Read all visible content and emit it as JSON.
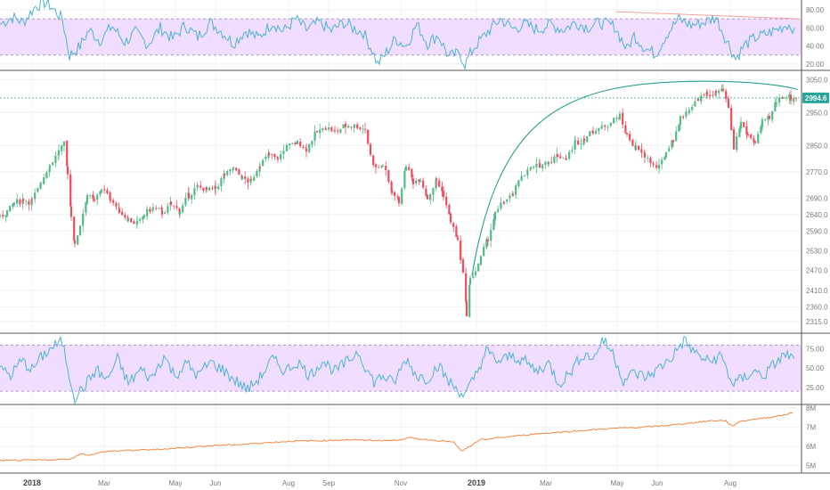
{
  "chart_data": [
    {
      "panel": "rsi-top",
      "type": "line",
      "ylim": [
        15,
        88
      ],
      "y_ticks": [
        "80.00",
        "60.00",
        "40.00",
        "20.00"
      ],
      "y_tick_values": [
        80,
        60,
        40,
        20
      ],
      "band": [
        30,
        70
      ],
      "colors": {
        "line": "#4bb3d0",
        "band": "#f1ddff",
        "bandline": "#9e86c8",
        "trend": "#f6a19a"
      },
      "anchors": [
        [
          0,
          64
        ],
        [
          14,
          72
        ],
        [
          26,
          66
        ],
        [
          40,
          84
        ],
        [
          50,
          88
        ],
        [
          56,
          85
        ],
        [
          70,
          70
        ],
        [
          78,
          29
        ],
        [
          90,
          40
        ],
        [
          100,
          58
        ],
        [
          112,
          46
        ],
        [
          126,
          62
        ],
        [
          140,
          44
        ],
        [
          152,
          55
        ],
        [
          166,
          42
        ],
        [
          180,
          60
        ],
        [
          194,
          48
        ],
        [
          208,
          63
        ],
        [
          222,
          50
        ],
        [
          236,
          66
        ],
        [
          248,
          57
        ],
        [
          262,
          43
        ],
        [
          276,
          57
        ],
        [
          290,
          49
        ],
        [
          306,
          66
        ],
        [
          318,
          56
        ],
        [
          332,
          70
        ],
        [
          344,
          58
        ],
        [
          358,
          66
        ],
        [
          372,
          57
        ],
        [
          386,
          66
        ],
        [
          396,
          60
        ],
        [
          408,
          55
        ],
        [
          418,
          35
        ],
        [
          424,
          20
        ],
        [
          432,
          30
        ],
        [
          444,
          48
        ],
        [
          456,
          40
        ],
        [
          468,
          64
        ],
        [
          480,
          43
        ],
        [
          492,
          52
        ],
        [
          504,
          28
        ],
        [
          516,
          32
        ],
        [
          522,
          20
        ],
        [
          532,
          38
        ],
        [
          548,
          56
        ],
        [
          562,
          70
        ],
        [
          576,
          59
        ],
        [
          590,
          64
        ],
        [
          604,
          58
        ],
        [
          618,
          64
        ],
        [
          632,
          58
        ],
        [
          646,
          66
        ],
        [
          660,
          61
        ],
        [
          674,
          66
        ],
        [
          690,
          62
        ],
        [
          704,
          36
        ],
        [
          712,
          52
        ],
        [
          724,
          38
        ],
        [
          736,
          31
        ],
        [
          748,
          52
        ],
        [
          762,
          70
        ],
        [
          776,
          63
        ],
        [
          790,
          66
        ],
        [
          804,
          72
        ],
        [
          816,
          46
        ],
        [
          826,
          26
        ],
        [
          836,
          41
        ],
        [
          848,
          49
        ],
        [
          860,
          53
        ],
        [
          872,
          58
        ],
        [
          884,
          64
        ],
        [
          892,
          60
        ]
      ],
      "trend": {
        "x": [
          692,
          898
        ],
        "y": [
          78,
          70
        ]
      }
    },
    {
      "panel": "price",
      "type": "candlestick",
      "ylim": [
        2285,
        3070
      ],
      "y_ticks": [
        "3050.0",
        "2950.0",
        "2850.0",
        "2770.0",
        "2690.0",
        "2640.0",
        "2590.0",
        "2530.0",
        "2470.0",
        "2410.0",
        "2360.0",
        "2315.0"
      ],
      "y_tick_values": [
        3050,
        2950,
        2850,
        2770,
        2690,
        2640,
        2590,
        2530,
        2470,
        2410,
        2360,
        2315
      ],
      "last_price": "2994.6",
      "last_value": 2994.6,
      "colors": {
        "up": "#53b987",
        "down": "#eb4d5c",
        "last": "#26a69a",
        "arc": "#2a9d8f"
      },
      "anchors": [
        [
          0,
          2635
        ],
        [
          8,
          2650
        ],
        [
          16,
          2675
        ],
        [
          26,
          2685
        ],
        [
          36,
          2680
        ],
        [
          46,
          2740
        ],
        [
          56,
          2790
        ],
        [
          66,
          2830
        ],
        [
          72,
          2850
        ],
        [
          76,
          2770
        ],
        [
          80,
          2640
        ],
        [
          84,
          2545
        ],
        [
          90,
          2610
        ],
        [
          98,
          2700
        ],
        [
          106,
          2680
        ],
        [
          114,
          2720
        ],
        [
          124,
          2690
        ],
        [
          134,
          2650
        ],
        [
          144,
          2625
        ],
        [
          154,
          2610
        ],
        [
          162,
          2640
        ],
        [
          172,
          2660
        ],
        [
          182,
          2645
        ],
        [
          192,
          2670
        ],
        [
          202,
          2650
        ],
        [
          212,
          2700
        ],
        [
          222,
          2725
        ],
        [
          232,
          2715
        ],
        [
          242,
          2720
        ],
        [
          252,
          2760
        ],
        [
          262,
          2780
        ],
        [
          272,
          2750
        ],
        [
          282,
          2740
        ],
        [
          292,
          2795
        ],
        [
          302,
          2820
        ],
        [
          312,
          2810
        ],
        [
          322,
          2845
        ],
        [
          334,
          2860
        ],
        [
          344,
          2840
        ],
        [
          356,
          2890
        ],
        [
          366,
          2905
        ],
        [
          376,
          2890
        ],
        [
          388,
          2910
        ],
        [
          398,
          2910
        ],
        [
          410,
          2900
        ],
        [
          416,
          2820
        ],
        [
          422,
          2780
        ],
        [
          430,
          2790
        ],
        [
          440,
          2710
        ],
        [
          448,
          2680
        ],
        [
          456,
          2790
        ],
        [
          464,
          2740
        ],
        [
          472,
          2750
        ],
        [
          480,
          2690
        ],
        [
          490,
          2745
        ],
        [
          498,
          2700
        ],
        [
          506,
          2620
        ],
        [
          514,
          2560
        ],
        [
          520,
          2460
        ],
        [
          524,
          2340
        ],
        [
          528,
          2445
        ],
        [
          534,
          2470
        ],
        [
          540,
          2510
        ],
        [
          548,
          2570
        ],
        [
          556,
          2640
        ],
        [
          566,
          2680
        ],
        [
          576,
          2700
        ],
        [
          586,
          2760
        ],
        [
          596,
          2780
        ],
        [
          606,
          2790
        ],
        [
          616,
          2800
        ],
        [
          626,
          2820
        ],
        [
          636,
          2810
        ],
        [
          646,
          2860
        ],
        [
          656,
          2870
        ],
        [
          666,
          2895
        ],
        [
          676,
          2905
        ],
        [
          686,
          2920
        ],
        [
          696,
          2940
        ],
        [
          704,
          2880
        ],
        [
          714,
          2840
        ],
        [
          724,
          2820
        ],
        [
          734,
          2790
        ],
        [
          740,
          2780
        ],
        [
          748,
          2830
        ],
        [
          756,
          2870
        ],
        [
          764,
          2930
        ],
        [
          774,
          2960
        ],
        [
          784,
          2990
        ],
        [
          794,
          3005
        ],
        [
          804,
          3010
        ],
        [
          812,
          3015
        ],
        [
          818,
          2960
        ],
        [
          824,
          2840
        ],
        [
          832,
          2920
        ],
        [
          840,
          2880
        ],
        [
          848,
          2860
        ],
        [
          856,
          2920
        ],
        [
          864,
          2930
        ],
        [
          872,
          2985
        ],
        [
          880,
          3000
        ],
        [
          888,
          2995
        ],
        [
          894,
          2994.6
        ]
      ],
      "arc": {
        "from": [
          530,
          2455
        ],
        "peak": [
          790,
          3045
        ],
        "to": [
          896,
          3020
        ]
      }
    },
    {
      "panel": "rsi-bottom",
      "type": "line",
      "ylim": [
        5,
        92
      ],
      "y_ticks": [
        "75.00",
        "50.00",
        "25.00"
      ],
      "y_tick_values": [
        75,
        50,
        25
      ],
      "band": [
        20,
        80
      ],
      "colors": {
        "line": "#4bb3d0",
        "band": "#f1ddff",
        "bandline": "#9e86c8"
      },
      "anchors": [
        [
          0,
          52
        ],
        [
          12,
          40
        ],
        [
          24,
          60
        ],
        [
          36,
          48
        ],
        [
          48,
          66
        ],
        [
          60,
          78
        ],
        [
          70,
          84
        ],
        [
          78,
          40
        ],
        [
          84,
          12
        ],
        [
          96,
          28
        ],
        [
          108,
          48
        ],
        [
          120,
          34
        ],
        [
          132,
          62
        ],
        [
          144,
          30
        ],
        [
          158,
          48
        ],
        [
          170,
          36
        ],
        [
          184,
          66
        ],
        [
          196,
          40
        ],
        [
          210,
          56
        ],
        [
          222,
          40
        ],
        [
          236,
          58
        ],
        [
          250,
          48
        ],
        [
          264,
          34
        ],
        [
          278,
          22
        ],
        [
          292,
          38
        ],
        [
          306,
          62
        ],
        [
          320,
          46
        ],
        [
          334,
          58
        ],
        [
          348,
          40
        ],
        [
          362,
          60
        ],
        [
          376,
          46
        ],
        [
          390,
          58
        ],
        [
          402,
          72
        ],
        [
          412,
          48
        ],
        [
          420,
          32
        ],
        [
          430,
          40
        ],
        [
          442,
          30
        ],
        [
          456,
          62
        ],
        [
          468,
          40
        ],
        [
          480,
          36
        ],
        [
          492,
          54
        ],
        [
          504,
          32
        ],
        [
          516,
          20
        ],
        [
          522,
          14
        ],
        [
          532,
          36
        ],
        [
          546,
          72
        ],
        [
          560,
          58
        ],
        [
          574,
          66
        ],
        [
          588,
          60
        ],
        [
          602,
          46
        ],
        [
          616,
          56
        ],
        [
          628,
          30
        ],
        [
          640,
          44
        ],
        [
          654,
          68
        ],
        [
          668,
          64
        ],
        [
          676,
          88
        ],
        [
          688,
          70
        ],
        [
          700,
          34
        ],
        [
          712,
          44
        ],
        [
          726,
          38
        ],
        [
          740,
          50
        ],
        [
          754,
          64
        ],
        [
          768,
          86
        ],
        [
          782,
          68
        ],
        [
          796,
          58
        ],
        [
          810,
          66
        ],
        [
          822,
          30
        ],
        [
          834,
          36
        ],
        [
          846,
          46
        ],
        [
          858,
          40
        ],
        [
          870,
          56
        ],
        [
          882,
          68
        ],
        [
          892,
          62
        ]
      ]
    },
    {
      "panel": "obv",
      "type": "line",
      "ylim": [
        4.7,
        8.1
      ],
      "y_ticks": [
        "8M",
        "7M",
        "6M",
        "5M"
      ],
      "y_tick_values": [
        8,
        7,
        6,
        5
      ],
      "colors": {
        "line": "#f5873c"
      },
      "anchors": [
        [
          0,
          5.26
        ],
        [
          30,
          5.28
        ],
        [
          60,
          5.3
        ],
        [
          80,
          5.35
        ],
        [
          90,
          5.62
        ],
        [
          100,
          5.55
        ],
        [
          120,
          5.75
        ],
        [
          150,
          5.8
        ],
        [
          180,
          5.85
        ],
        [
          210,
          5.95
        ],
        [
          240,
          6.05
        ],
        [
          270,
          6.1
        ],
        [
          300,
          6.2
        ],
        [
          330,
          6.28
        ],
        [
          360,
          6.3
        ],
        [
          390,
          6.35
        ],
        [
          420,
          6.32
        ],
        [
          440,
          6.3
        ],
        [
          460,
          6.45
        ],
        [
          480,
          6.35
        ],
        [
          500,
          6.28
        ],
        [
          510,
          6.2
        ],
        [
          518,
          5.75
        ],
        [
          524,
          5.9
        ],
        [
          540,
          6.35
        ],
        [
          570,
          6.5
        ],
        [
          600,
          6.65
        ],
        [
          630,
          6.75
        ],
        [
          660,
          6.85
        ],
        [
          690,
          6.95
        ],
        [
          720,
          7.0
        ],
        [
          750,
          7.1
        ],
        [
          780,
          7.25
        ],
        [
          800,
          7.35
        ],
        [
          815,
          7.35
        ],
        [
          822,
          7.05
        ],
        [
          830,
          7.3
        ],
        [
          850,
          7.45
        ],
        [
          870,
          7.55
        ],
        [
          890,
          7.75
        ]
      ]
    },
    {
      "panel": "time-axis",
      "type": "axis",
      "x_ticks": [
        {
          "label": "2018",
          "x": 36,
          "major": true
        },
        {
          "label": "Mar",
          "x": 117,
          "major": false
        },
        {
          "label": "May",
          "x": 197,
          "major": false
        },
        {
          "label": "Jun",
          "x": 242,
          "major": false
        },
        {
          "label": "Aug",
          "x": 324,
          "major": false
        },
        {
          "label": "Sep",
          "x": 369,
          "major": false
        },
        {
          "label": "Nov",
          "x": 450,
          "major": false
        },
        {
          "label": "2019",
          "x": 535,
          "major": true
        },
        {
          "label": "Mar",
          "x": 613,
          "major": false
        },
        {
          "label": "May",
          "x": 693,
          "major": false
        },
        {
          "label": "Jun",
          "x": 738,
          "major": false
        },
        {
          "label": "Aug",
          "x": 820,
          "major": false
        }
      ]
    }
  ]
}
